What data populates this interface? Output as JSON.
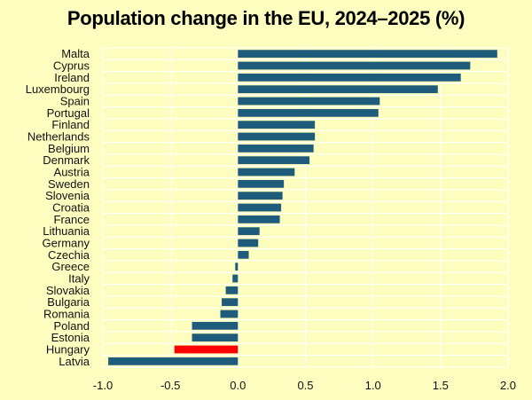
{
  "chart_data": {
    "type": "bar",
    "orientation": "horizontal",
    "title": "Population change in the EU, 2024–2025 (%)",
    "xlabel": "",
    "ylabel": "",
    "xlim": [
      -1.0,
      2.0
    ],
    "x_ticks": [
      "-1.0",
      "-0.5",
      "0.0",
      "0.5",
      "1.0",
      "1.5",
      "2.0"
    ],
    "x_tick_values": [
      -1.0,
      -0.5,
      0.0,
      0.5,
      1.0,
      1.5,
      2.0
    ],
    "grid": true,
    "legend": "none",
    "categories": [
      "Malta",
      "Cyprus",
      "Ireland",
      "Luxembourg",
      "Spain",
      "Portugal",
      "Finland",
      "Netherlands",
      "Belgium",
      "Denmark",
      "Austria",
      "Sweden",
      "Slovenia",
      "Croatia",
      "France",
      "Lithuania",
      "Germany",
      "Czechia",
      "Greece",
      "Italy",
      "Slovakia",
      "Bulgaria",
      "Romania",
      "Poland",
      "Estonia",
      "Hungary",
      "Latvia"
    ],
    "values": [
      1.92,
      1.72,
      1.65,
      1.48,
      1.05,
      1.04,
      0.57,
      0.57,
      0.56,
      0.53,
      0.42,
      0.34,
      0.33,
      0.32,
      0.31,
      0.16,
      0.15,
      0.08,
      -0.02,
      -0.04,
      -0.09,
      -0.12,
      -0.13,
      -0.34,
      -0.34,
      -0.47,
      -0.96
    ],
    "bar_color": "#1f5b7a",
    "highlight": {
      "category": "Hungary",
      "color": "#ff0000"
    },
    "background_color": "#fdfdc0",
    "grid_color": "#ffffff"
  }
}
